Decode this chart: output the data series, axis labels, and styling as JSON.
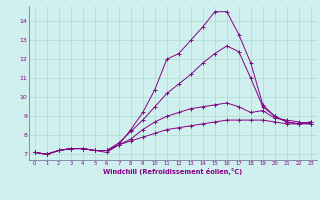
{
  "xlabel": "Windchill (Refroidissement éolien,°C)",
  "background_color": "#cff0ee",
  "line_color": "#880088",
  "grid_color": "#aaddcc",
  "xlim": [
    -0.5,
    23.5
  ],
  "ylim": [
    6.7,
    14.8
  ],
  "xticks": [
    0,
    1,
    2,
    3,
    4,
    5,
    6,
    7,
    8,
    9,
    10,
    11,
    12,
    13,
    14,
    15,
    16,
    17,
    18,
    19,
    20,
    21,
    22,
    23
  ],
  "yticks": [
    7,
    8,
    9,
    10,
    11,
    12,
    13,
    14
  ],
  "series": [
    [
      7.1,
      7.0,
      7.2,
      7.3,
      7.3,
      7.2,
      7.1,
      7.5,
      8.3,
      9.2,
      10.4,
      12.0,
      12.3,
      13.0,
      13.7,
      14.5,
      14.5,
      13.3,
      11.8,
      9.6,
      9.0,
      8.7,
      8.6,
      8.7
    ],
    [
      7.1,
      7.0,
      7.2,
      7.3,
      7.3,
      7.2,
      7.2,
      7.6,
      8.2,
      8.8,
      9.5,
      10.2,
      10.7,
      11.2,
      11.8,
      12.3,
      12.7,
      12.4,
      11.0,
      9.5,
      9.0,
      8.7,
      8.6,
      8.7
    ],
    [
      7.1,
      7.0,
      7.2,
      7.3,
      7.3,
      7.2,
      7.2,
      7.5,
      7.8,
      8.3,
      8.7,
      9.0,
      9.2,
      9.4,
      9.5,
      9.6,
      9.7,
      9.5,
      9.2,
      9.3,
      8.9,
      8.8,
      8.7,
      8.6
    ],
    [
      7.1,
      7.0,
      7.2,
      7.3,
      7.3,
      7.2,
      7.2,
      7.5,
      7.7,
      7.9,
      8.1,
      8.3,
      8.4,
      8.5,
      8.6,
      8.7,
      8.8,
      8.8,
      8.8,
      8.8,
      8.7,
      8.6,
      8.6,
      8.6
    ]
  ]
}
